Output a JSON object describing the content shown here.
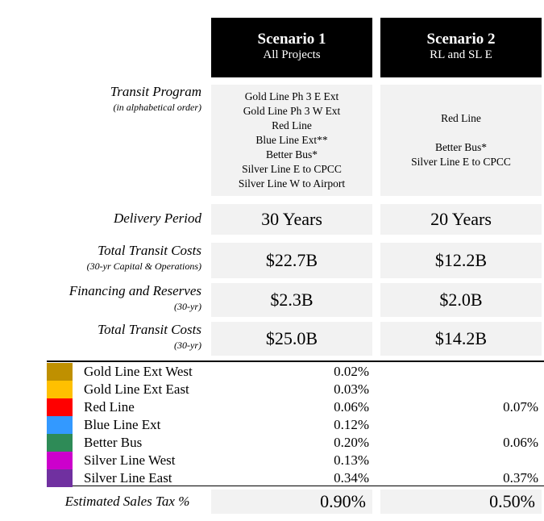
{
  "header": {
    "columns": [
      {
        "title": "Scenario 1",
        "subtitle": "All Projects"
      },
      {
        "title": "Scenario 2",
        "subtitle": "RL and SL E"
      }
    ]
  },
  "program": {
    "label": "Transit Program",
    "note": "(in alphabetical order)",
    "values": [
      [
        "Gold Line Ph 3 E Ext",
        "Gold Line Ph 3 W Ext",
        "Red Line",
        "Blue Line Ext**",
        "Better Bus*",
        "Silver Line E to CPCC",
        "Silver Line W to Airport"
      ],
      [
        "Red Line",
        "Better Bus*",
        "Silver Line E to CPCC"
      ]
    ]
  },
  "rows": [
    {
      "label": "Delivery Period",
      "values": [
        "30 Years",
        "20 Years"
      ]
    },
    {
      "label": "Total Transit Costs",
      "note": "(30-yr Capital & Operations)",
      "values": [
        "$22.7B",
        "$12.2B"
      ]
    },
    {
      "label": "Financing and Reserves",
      "note": "(30-yr)",
      "values": [
        "$2.3B",
        "$2.0B"
      ]
    },
    {
      "label": "Total Transit Costs",
      "note": "(30-yr)",
      "values": [
        "$25.0B",
        "$14.2B"
      ]
    }
  ],
  "tax": {
    "rows": [
      {
        "color": "#bf9000",
        "label": "Gold Line Ext West",
        "values": [
          "0.02%",
          null
        ]
      },
      {
        "color": "#ffc000",
        "label": "Gold Line Ext East",
        "values": [
          "0.03%",
          null
        ]
      },
      {
        "color": "#ff0000",
        "label": "Red Line",
        "values": [
          "0.06%",
          "0.07%"
        ]
      },
      {
        "color": "#3399ff",
        "label": "Blue Line Ext",
        "values": [
          "0.12%",
          null
        ]
      },
      {
        "color": "#2e8b57",
        "label": "Better Bus",
        "values": [
          "0.20%",
          "0.06%"
        ]
      },
      {
        "color": "#cc00cc",
        "label": "Silver Line West",
        "values": [
          "0.13%",
          null
        ]
      },
      {
        "color": "#7030a0",
        "label": "Silver Line East",
        "values": [
          "0.34%",
          "0.37%"
        ]
      }
    ],
    "total": {
      "label": "Estimated Sales Tax %",
      "values": [
        "0.90%",
        "0.50%"
      ]
    }
  }
}
